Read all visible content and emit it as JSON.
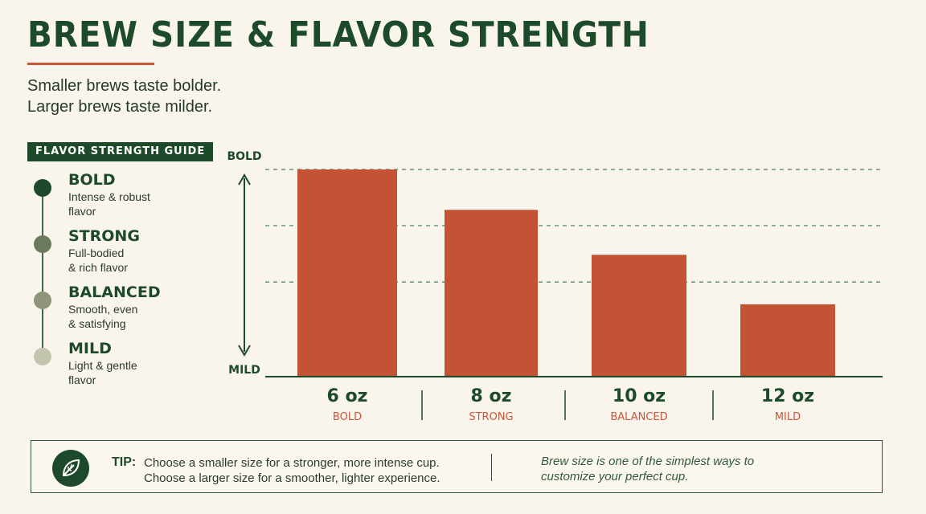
{
  "title": "BREW SIZE & FLAVOR STRENGTH",
  "subtitle_lines": [
    "Smaller brews taste bolder.",
    "Larger brews taste milder."
  ],
  "guide": {
    "heading": "FLAVOR STRENGTH GUIDE",
    "items": [
      {
        "name": "BOLD",
        "desc_lines": [
          "Intense & robust",
          "flavor"
        ],
        "color": "#1d4a2a"
      },
      {
        "name": "STRONG",
        "desc_lines": [
          "Full-bodied",
          "& rich flavor"
        ],
        "color": "#6b7a5c"
      },
      {
        "name": "BALANCED",
        "desc_lines": [
          "Smooth, even",
          "& satisfying"
        ],
        "color": "#8e957a"
      },
      {
        "name": "MILD",
        "desc_lines": [
          "Light & gentle",
          "flavor"
        ],
        "color": "#c4c5ad"
      }
    ]
  },
  "colors": {
    "accent": "#c8553a",
    "bar": "#c45234",
    "primary": "#1d4a2a",
    "grid": "#4e7a58"
  },
  "chart_data": {
    "type": "bar",
    "categories": [
      "6 oz",
      "8 oz",
      "10 oz",
      "12 oz"
    ],
    "sublabels": [
      "BOLD",
      "STRONG",
      "BALANCED",
      "MILD"
    ],
    "values": [
      100,
      80.5,
      58.8,
      34.9
    ],
    "ylim": [
      0,
      100
    ],
    "y_axis_top_label": "BOLD",
    "y_axis_bottom_label": "MILD",
    "grid": "dashed horizontal",
    "legend": "none"
  },
  "tip": {
    "label": "TIP:",
    "line1": "Choose a smaller size for a stronger, more intense cup.",
    "line2": "Choose a larger size for a smoother, lighter experience.",
    "note_line1": "Brew size is one of the simplest ways to",
    "note_line2": "customize your perfect cup.",
    "icon": "leaf-icon"
  }
}
